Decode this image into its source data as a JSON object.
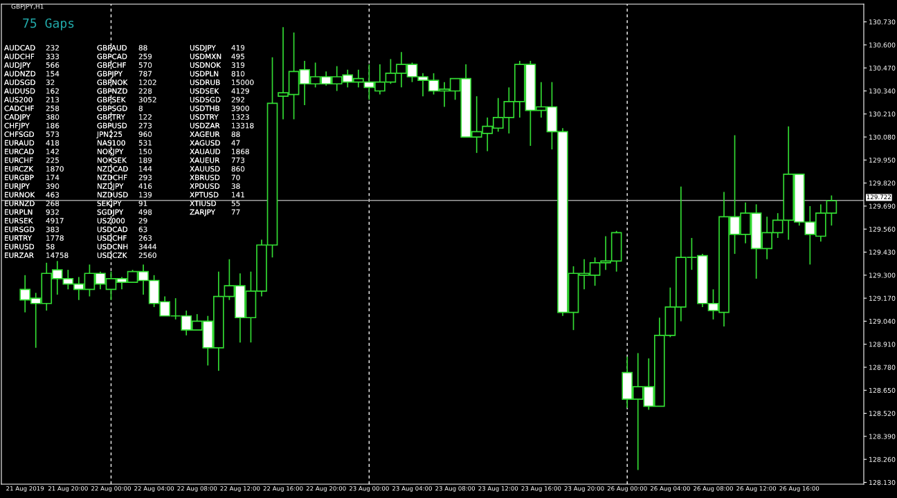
{
  "chart_data": {
    "type": "candlestick",
    "title": "GBPJPY,H1",
    "color": "#33dd33",
    "categories": [
      "21 Aug 2019",
      null,
      null,
      null,
      "21 Aug 20:00",
      null,
      null,
      null,
      "22 Aug 00:00",
      null,
      null,
      null,
      "22 Aug 04:00",
      null,
      null,
      null,
      "22 Aug 08:00",
      null,
      null,
      null,
      "22 Aug 12:00",
      null,
      null,
      null,
      "22 Aug 16:00",
      null,
      null,
      null,
      "22 Aug 20:00",
      null,
      null,
      null,
      "23 Aug 00:00",
      null,
      null,
      null,
      "23 Aug 04:00",
      null,
      null,
      null,
      "23 Aug 08:00",
      null,
      null,
      null,
      "23 Aug 12:00",
      null,
      null,
      null,
      "23 Aug 16:00",
      null,
      null,
      null,
      "23 Aug 20:00",
      null,
      null,
      null,
      "26 Aug 00:00",
      null,
      null,
      null,
      "26 Aug 04:00",
      null,
      null,
      null,
      "26 Aug 08:00",
      null,
      null,
      null,
      "26 Aug 12:00",
      null,
      null,
      null,
      "26 Aug 16:00",
      null,
      null,
      null
    ],
    "ohlc": [
      [
        129.22,
        129.3,
        129.09,
        129.16
      ],
      [
        129.17,
        129.2,
        128.89,
        129.14
      ],
      [
        129.14,
        129.37,
        129.1,
        129.31
      ],
      [
        129.33,
        129.38,
        129.19,
        129.28
      ],
      [
        129.28,
        129.33,
        129.22,
        129.25
      ],
      [
        129.25,
        129.29,
        129.16,
        129.22
      ],
      [
        129.22,
        129.36,
        129.18,
        129.31
      ],
      [
        129.31,
        129.32,
        129.22,
        129.25
      ],
      [
        129.22,
        129.32,
        129.16,
        129.28
      ],
      [
        129.28,
        129.29,
        129.22,
        129.26
      ],
      [
        129.26,
        129.33,
        129.26,
        129.32
      ],
      [
        129.32,
        129.36,
        129.19,
        129.27
      ],
      [
        129.27,
        129.3,
        129.12,
        129.14
      ],
      [
        129.15,
        129.18,
        129.07,
        129.07
      ],
      [
        129.07,
        129.17,
        129.05,
        129.07
      ],
      [
        129.07,
        129.1,
        128.96,
        128.99
      ],
      [
        128.99,
        129.08,
        128.99,
        129.04
      ],
      [
        129.04,
        129.07,
        128.79,
        128.89
      ],
      [
        128.89,
        129.32,
        128.76,
        129.18
      ],
      [
        129.18,
        129.39,
        129.16,
        129.24
      ],
      [
        129.24,
        129.31,
        128.92,
        129.06
      ],
      [
        129.06,
        129.32,
        128.92,
        129.21
      ],
      [
        129.21,
        129.5,
        129.18,
        129.47
      ],
      [
        129.47,
        130.53,
        129.4,
        130.27
      ],
      [
        130.31,
        130.7,
        130.18,
        130.33
      ],
      [
        130.32,
        130.67,
        130.18,
        130.45
      ],
      [
        130.46,
        130.51,
        130.26,
        130.38
      ],
      [
        130.38,
        130.5,
        130.36,
        130.42
      ],
      [
        130.42,
        130.45,
        130.37,
        130.38
      ],
      [
        130.38,
        130.48,
        130.34,
        130.42
      ],
      [
        130.43,
        130.46,
        130.36,
        130.39
      ],
      [
        130.39,
        130.46,
        130.36,
        130.41
      ],
      [
        130.39,
        130.49,
        130.29,
        130.36
      ],
      [
        130.34,
        130.49,
        130.32,
        130.39
      ],
      [
        130.39,
        130.52,
        130.38,
        130.44
      ],
      [
        130.44,
        130.56,
        130.36,
        130.49
      ],
      [
        130.49,
        130.5,
        130.39,
        130.42
      ],
      [
        130.42,
        130.44,
        130.31,
        130.4
      ],
      [
        130.4,
        130.44,
        130.32,
        130.34
      ],
      [
        130.34,
        130.39,
        130.25,
        130.35
      ],
      [
        130.34,
        130.41,
        130.29,
        130.41
      ],
      [
        130.41,
        130.49,
        130.08,
        130.08
      ],
      [
        130.08,
        130.31,
        129.99,
        130.11
      ],
      [
        130.1,
        130.19,
        130.0,
        130.14
      ],
      [
        130.13,
        130.3,
        130.11,
        130.19
      ],
      [
        130.19,
        130.36,
        130.1,
        130.28
      ],
      [
        130.28,
        130.51,
        130.19,
        130.49
      ],
      [
        130.49,
        130.51,
        130.03,
        130.23
      ],
      [
        130.23,
        130.39,
        130.19,
        130.25
      ],
      [
        130.25,
        130.39,
        130.01,
        130.11
      ],
      [
        130.11,
        130.13,
        129.07,
        129.09
      ],
      [
        129.09,
        129.35,
        128.99,
        129.31
      ],
      [
        129.3,
        129.39,
        129.22,
        129.31
      ],
      [
        129.3,
        129.4,
        129.24,
        129.37
      ],
      [
        129.37,
        129.52,
        129.33,
        129.38
      ],
      [
        129.38,
        129.55,
        129.32,
        129.54
      ],
      [
        128.75,
        128.84,
        128.55,
        128.6
      ],
      [
        128.6,
        128.86,
        128.2,
        128.67
      ],
      [
        128.67,
        128.83,
        128.54,
        128.56
      ],
      [
        128.56,
        129.06,
        128.56,
        128.96
      ],
      [
        128.96,
        129.23,
        128.95,
        129.12
      ],
      [
        129.12,
        129.8,
        129.04,
        129.4
      ],
      [
        129.4,
        129.51,
        129.33,
        129.4
      ],
      [
        129.41,
        129.42,
        129.12,
        129.14
      ],
      [
        129.14,
        129.22,
        129.05,
        129.1
      ],
      [
        129.09,
        129.77,
        129.01,
        129.63
      ],
      [
        129.63,
        130.09,
        129.42,
        129.53
      ],
      [
        129.53,
        129.71,
        129.48,
        129.65
      ],
      [
        129.65,
        129.7,
        129.28,
        129.45
      ],
      [
        129.45,
        129.63,
        129.39,
        129.54
      ],
      [
        129.54,
        129.65,
        129.51,
        129.61
      ],
      [
        129.61,
        130.14,
        129.5,
        129.87
      ],
      [
        129.87,
        129.87,
        129.58,
        129.6
      ],
      [
        129.6,
        129.69,
        129.36,
        129.53
      ],
      [
        129.52,
        129.7,
        129.49,
        129.65
      ],
      [
        129.65,
        129.75,
        129.58,
        129.72
      ]
    ],
    "ylim": [
      128.12,
      130.83
    ],
    "yticks": [
      {
        "value": 128.13,
        "label": "128.130"
      },
      {
        "value": 128.26,
        "label": "128.260"
      },
      {
        "value": 128.39,
        "label": "128.390"
      },
      {
        "value": 128.52,
        "label": "128.520"
      },
      {
        "value": 128.65,
        "label": "128.650"
      },
      {
        "value": 128.78,
        "label": "128.780"
      },
      {
        "value": 128.91,
        "label": "128.910"
      },
      {
        "value": 129.04,
        "label": "129.040"
      },
      {
        "value": 129.17,
        "label": "129.170"
      },
      {
        "value": 129.3,
        "label": "129.300"
      },
      {
        "value": 129.43,
        "label": "129.430"
      },
      {
        "value": 129.56,
        "label": "129.560"
      },
      {
        "value": 129.69,
        "label": "129.690"
      },
      {
        "value": 129.82,
        "label": "129.820"
      },
      {
        "value": 129.95,
        "label": "129.950"
      },
      {
        "value": 130.08,
        "label": "130.080"
      },
      {
        "value": 130.21,
        "label": "130.210"
      },
      {
        "value": 130.34,
        "label": "130.340"
      },
      {
        "value": 130.47,
        "label": "130.470"
      },
      {
        "value": 130.6,
        "label": "130.600"
      },
      {
        "value": 130.73,
        "label": "130.730"
      }
    ],
    "ref_lines": [
      {
        "axis": "x",
        "value": "22 Aug 00:00",
        "color": "#ffffff",
        "line_style": "dashed"
      },
      {
        "axis": "x",
        "value": "23 Aug 00:00",
        "color": "#ffffff",
        "line_style": "dashed"
      },
      {
        "axis": "x",
        "value": "26 Aug 00:00",
        "color": "#ffffff",
        "line_style": "dashed"
      },
      {
        "axis": "y",
        "value": 129.722,
        "label": "129.722",
        "color": "#a0a0a0",
        "line_style": "solid"
      }
    ],
    "grid": false,
    "annotations": [
      "75 Gaps",
      "AUDCAD 232",
      "AUDCHF 333",
      "AUDJPY 566",
      "AUDNZD 154",
      "AUDSGD 32",
      "AUDUSD 162",
      "AUS200 213",
      "CADCHF 258",
      "CADJPY 380",
      "CHFJPY 186",
      "CHFSGD 573",
      "EURAUD 418",
      "EURCAD 142",
      "EURCHF 225",
      "EURCZK 1870",
      "EURGBP 174",
      "EURJPY 390",
      "EURNOK 463",
      "EURNZD 268",
      "EURPLN 932",
      "EURSEK 4917",
      "EURSGD 383",
      "EURTRY 1778",
      "EURUSD 58",
      "EURZAR 14758",
      "GBPAUD 88",
      "GBPCAD 259",
      "GBPCHF 570",
      "GBPJPY 787",
      "GBPNOK 1202",
      "GBPNZD 228",
      "GBPSEK 3052",
      "GBPSGD 8",
      "GBPTRY 122",
      "GBPUSD 273",
      "JPN225 960",
      "NAS100 531",
      "NOKJPY 150",
      "NOKSEK 189",
      "NZDCAD 144",
      "NZDCHF 293",
      "NZDJPY 416",
      "NZDUSD 139",
      "SEKJPY 91",
      "SGDJPY 498",
      "US2000 29",
      "USDCAD 63",
      "USDCHF 263",
      "USDCNH 3444",
      "USDCZK 2560",
      "USDJPY 419",
      "USDMXN 495",
      "USDNOK 319",
      "USDPLN 810",
      "USDRUB 15000",
      "USDSEK 4129",
      "USDSGD 292",
      "USDTHB 3900",
      "USDTRY 1323",
      "USDZAR 13318",
      "XAGEUR 88",
      "XAGUSD 47",
      "XAUAUD 1868",
      "XAUEUR 773",
      "XAUUSD 860",
      "XBRUSD 70",
      "XPDUSD 38",
      "XPTUSD 141",
      "XTIUSD 55",
      "ZARJPY 77"
    ]
  }
}
